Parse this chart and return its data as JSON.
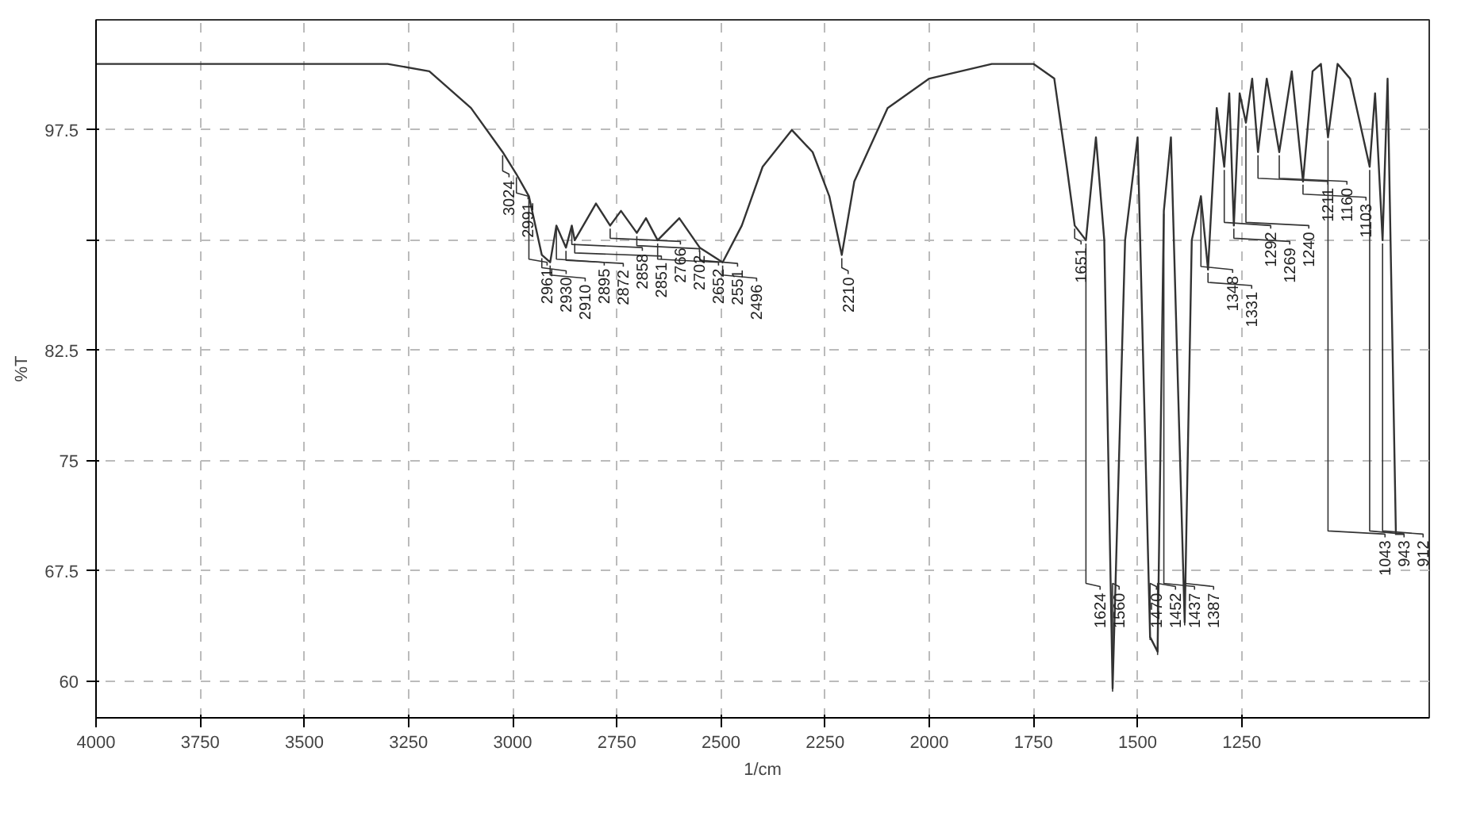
{
  "chart_data": {
    "type": "line",
    "xlabel": "1/cm",
    "ylabel": "%T",
    "xlim": [
      4000,
      800
    ],
    "ylim": [
      57.5,
      105
    ],
    "xticks": [
      4000,
      3750,
      3500,
      3250,
      3000,
      2750,
      2500,
      2250,
      2000,
      1750,
      1500,
      1250
    ],
    "yticks": [
      60,
      67.5,
      75,
      82.5,
      {
        "value": 90,
        "label": null
      },
      97.5
    ],
    "grid": true,
    "line_style": "solid",
    "marker": "none",
    "series": [
      {
        "color": "#333333",
        "x": [
          4000,
          3300,
          3200,
          3100,
          3024,
          2991,
          2961,
          2930,
          2910,
          2895,
          2872,
          2858,
          2851,
          2800,
          2766,
          2740,
          2702,
          2680,
          2652,
          2600,
          2551,
          2496,
          2450,
          2400,
          2330,
          2280,
          2240,
          2210,
          2180,
          2100,
          2000,
          1850,
          1750,
          1700,
          1670,
          1651,
          1624,
          1600,
          1580,
          1560,
          1530,
          1500,
          1470,
          1452,
          1437,
          1420,
          1387,
          1370,
          1348,
          1331,
          1310,
          1292,
          1280,
          1269,
          1255,
          1240,
          1225,
          1211,
          1190,
          1160,
          1130,
          1103,
          1080,
          1060,
          1043,
          1020,
          990,
          943,
          930,
          912,
          900,
          880,
          860
        ],
        "values": [
          102,
          102,
          101.5,
          99,
          96,
          94.5,
          93,
          89,
          88.5,
          91,
          89.5,
          91,
          90,
          92.5,
          91,
          92,
          90.5,
          91.5,
          90,
          91.5,
          89.5,
          88.5,
          91,
          95,
          97.5,
          96,
          93,
          89,
          94,
          99,
          101,
          102,
          102,
          101,
          95,
          91,
          90,
          97,
          90,
          59.5,
          90,
          97,
          63,
          62,
          92,
          97,
          64,
          90,
          93,
          88,
          99,
          95,
          100,
          91,
          100,
          98,
          101,
          96,
          101,
          96,
          101.5,
          94,
          101.5,
          102,
          97,
          102,
          101,
          95,
          100,
          90,
          101,
          70,
          70
        ]
      }
    ],
    "annotations": [
      {
        "text": "3024",
        "x": 3024,
        "y": 96
      },
      {
        "text": "2991",
        "x": 2991,
        "y": 94.5
      },
      {
        "text": "2961",
        "x": 2961,
        "y": 93
      },
      {
        "text": "2930",
        "x": 2930,
        "y": 89
      },
      {
        "text": "2910",
        "x": 2910,
        "y": 88.5
      },
      {
        "text": "2895",
        "x": 2895,
        "y": 91
      },
      {
        "text": "2872",
        "x": 2872,
        "y": 89.5
      },
      {
        "text": "2858",
        "x": 2858,
        "y": 91
      },
      {
        "text": "2851",
        "x": 2851,
        "y": 90
      },
      {
        "text": "2766",
        "x": 2766,
        "y": 91
      },
      {
        "text": "2702",
        "x": 2702,
        "y": 90.5
      },
      {
        "text": "2652",
        "x": 2652,
        "y": 90
      },
      {
        "text": "2551",
        "x": 2551,
        "y": 89.5
      },
      {
        "text": "2496",
        "x": 2496,
        "y": 88.5
      },
      {
        "text": "2210",
        "x": 2210,
        "y": 89
      },
      {
        "text": "1651",
        "x": 1651,
        "y": 91
      },
      {
        "text": "1624",
        "x": 1624,
        "y": 90
      },
      {
        "text": "1560",
        "x": 1560,
        "y": 59.5
      },
      {
        "text": "1470",
        "x": 1470,
        "y": 63
      },
      {
        "text": "1452",
        "x": 1452,
        "y": 62
      },
      {
        "text": "1437",
        "x": 1437,
        "y": 92
      },
      {
        "text": "1387",
        "x": 1387,
        "y": 64
      },
      {
        "text": "1348",
        "x": 1348,
        "y": 93
      },
      {
        "text": "1331",
        "x": 1331,
        "y": 88
      },
      {
        "text": "1292",
        "x": 1292,
        "y": 95
      },
      {
        "text": "1269",
        "x": 1269,
        "y": 91
      },
      {
        "text": "1240",
        "x": 1240,
        "y": 98
      },
      {
        "text": "1211",
        "x": 1211,
        "y": 96
      },
      {
        "text": "1160",
        "x": 1160,
        "y": 96
      },
      {
        "text": "1103",
        "x": 1103,
        "y": 94
      },
      {
        "text": "1043",
        "x": 1043,
        "y": 97
      },
      {
        "text": "943",
        "x": 943,
        "y": 95
      },
      {
        "text": "912",
        "x": 912,
        "y": 90
      }
    ]
  }
}
